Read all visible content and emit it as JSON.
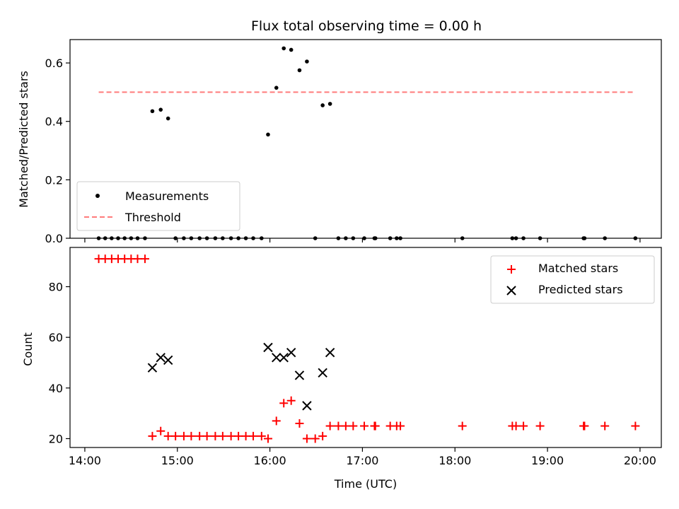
{
  "chart_data": {
    "type": "scatter",
    "title": "Flux total observing time = 0.00 h",
    "xlabel": "Time (UTC)",
    "x_ticks": [
      "14:00",
      "15:00",
      "16:00",
      "17:00",
      "18:00",
      "19:00",
      "20:00"
    ],
    "x_ticks_hours": [
      14,
      15,
      16,
      17,
      18,
      19,
      20
    ],
    "xlim_hours": [
      13.84,
      20.23
    ],
    "panels": [
      {
        "id": "top",
        "ylabel": "Matched/Predicted stars",
        "ylim": [
          0,
          0.68
        ],
        "y_ticks": [
          "0.0",
          "0.2",
          "0.4",
          "0.6"
        ],
        "y_tick_values": [
          0,
          0.2,
          0.4,
          0.6
        ],
        "legend": {
          "placement": "lower-left",
          "entries": [
            "Measurements",
            "Threshold"
          ]
        },
        "series": [
          {
            "name": "Measurements",
            "marker": "dot",
            "color": "#000000",
            "points": [
              [
                14.15,
                0
              ],
              [
                14.22,
                0
              ],
              [
                14.29,
                0
              ],
              [
                14.36,
                0
              ],
              [
                14.43,
                0
              ],
              [
                14.5,
                0
              ],
              [
                14.57,
                0
              ],
              [
                14.65,
                0
              ],
              [
                14.73,
                0.435
              ],
              [
                14.82,
                0.44
              ],
              [
                14.9,
                0.41
              ],
              [
                14.98,
                0
              ],
              [
                15.07,
                0
              ],
              [
                15.15,
                0
              ],
              [
                15.24,
                0
              ],
              [
                15.32,
                0
              ],
              [
                15.41,
                0
              ],
              [
                15.49,
                0
              ],
              [
                15.58,
                0
              ],
              [
                15.66,
                0
              ],
              [
                15.74,
                0
              ],
              [
                15.82,
                0
              ],
              [
                15.91,
                0
              ],
              [
                15.98,
                0.355
              ],
              [
                16.07,
                0.515
              ],
              [
                16.15,
                0.65
              ],
              [
                16.23,
                0.645
              ],
              [
                16.32,
                0.575
              ],
              [
                16.4,
                0.605
              ],
              [
                16.49,
                0
              ],
              [
                16.57,
                0.455
              ],
              [
                16.65,
                0.46
              ],
              [
                16.74,
                0
              ],
              [
                16.82,
                0
              ],
              [
                16.9,
                0
              ],
              [
                17.02,
                0
              ],
              [
                17.13,
                0
              ],
              [
                17.14,
                0
              ],
              [
                17.3,
                0
              ],
              [
                17.37,
                0
              ],
              [
                17.41,
                0
              ],
              [
                18.08,
                0
              ],
              [
                18.62,
                0
              ],
              [
                18.66,
                0
              ],
              [
                18.74,
                0
              ],
              [
                18.92,
                0
              ],
              [
                19.39,
                0
              ],
              [
                19.4,
                0
              ],
              [
                19.62,
                0
              ],
              [
                19.95,
                0
              ]
            ]
          },
          {
            "name": "Threshold",
            "type": "line",
            "style": "dashed",
            "color": "#ff7b7b",
            "points": [
              [
                14.15,
                0.5
              ],
              [
                19.95,
                0.5
              ]
            ]
          }
        ]
      },
      {
        "id": "bottom",
        "ylabel": "Count",
        "ylim": [
          16.5,
          95.5
        ],
        "y_ticks": [
          "20",
          "40",
          "60",
          "80"
        ],
        "y_tick_values": [
          20,
          40,
          60,
          80
        ],
        "legend": {
          "placement": "upper-right",
          "entries": [
            "Matched stars",
            "Predicted stars"
          ]
        },
        "series": [
          {
            "name": "Matched stars",
            "marker": "plus",
            "color": "#ff0000",
            "points": [
              [
                14.15,
                91
              ],
              [
                14.22,
                91
              ],
              [
                14.29,
                91
              ],
              [
                14.36,
                91
              ],
              [
                14.43,
                91
              ],
              [
                14.5,
                91
              ],
              [
                14.57,
                91
              ],
              [
                14.65,
                91
              ],
              [
                14.73,
                21
              ],
              [
                14.82,
                23
              ],
              [
                14.9,
                21
              ],
              [
                14.98,
                21
              ],
              [
                15.07,
                21
              ],
              [
                15.15,
                21
              ],
              [
                15.24,
                21
              ],
              [
                15.32,
                21
              ],
              [
                15.41,
                21
              ],
              [
                15.49,
                21
              ],
              [
                15.58,
                21
              ],
              [
                15.66,
                21
              ],
              [
                15.74,
                21
              ],
              [
                15.82,
                21
              ],
              [
                15.91,
                21
              ],
              [
                15.98,
                20
              ],
              [
                16.07,
                27
              ],
              [
                16.15,
                34
              ],
              [
                16.23,
                35
              ],
              [
                16.32,
                26
              ],
              [
                16.4,
                20
              ],
              [
                16.49,
                20
              ],
              [
                16.57,
                21
              ],
              [
                16.65,
                25
              ],
              [
                16.74,
                25
              ],
              [
                16.82,
                25
              ],
              [
                16.9,
                25
              ],
              [
                17.02,
                25
              ],
              [
                17.13,
                25
              ],
              [
                17.14,
                25
              ],
              [
                17.3,
                25
              ],
              [
                17.37,
                25
              ],
              [
                17.41,
                25
              ],
              [
                18.08,
                25
              ],
              [
                18.62,
                25
              ],
              [
                18.66,
                25
              ],
              [
                18.74,
                25
              ],
              [
                18.92,
                25
              ],
              [
                19.39,
                25
              ],
              [
                19.4,
                25
              ],
              [
                19.62,
                25
              ],
              [
                19.95,
                25
              ]
            ]
          },
          {
            "name": "Predicted stars",
            "marker": "x",
            "color": "#000000",
            "points": [
              [
                14.73,
                48
              ],
              [
                14.82,
                52
              ],
              [
                14.9,
                51
              ],
              [
                15.98,
                56
              ],
              [
                16.07,
                52
              ],
              [
                16.15,
                52
              ],
              [
                16.23,
                54
              ],
              [
                16.32,
                45
              ],
              [
                16.4,
                33
              ],
              [
                16.57,
                46
              ],
              [
                16.65,
                54
              ]
            ]
          }
        ]
      }
    ]
  }
}
